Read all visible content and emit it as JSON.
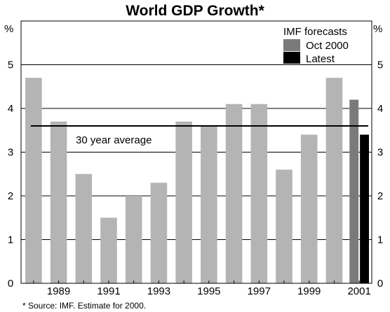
{
  "chart_data": {
    "type": "bar",
    "title": "World GDP Growth*",
    "y_unit_left": "%",
    "y_unit_right": "%",
    "ylim": [
      0,
      6
    ],
    "yticks": [
      0,
      1,
      2,
      3,
      4,
      5
    ],
    "x_tick_labels": [
      "1989",
      "1991",
      "1993",
      "1995",
      "1997",
      "1999",
      "2001"
    ],
    "x_tick_years": [
      1989,
      1991,
      1993,
      1995,
      1997,
      1999,
      2001
    ],
    "x_range": [
      1987.5,
      2001.5
    ],
    "series": [
      {
        "name": "",
        "color": "#b4b4b4",
        "x": [
          1988,
          1989,
          1990,
          1991,
          1992,
          1993,
          1994,
          1995,
          1996,
          1997,
          1998,
          1999,
          2000
        ],
        "values": [
          4.7,
          3.7,
          2.5,
          1.5,
          2.0,
          2.3,
          3.7,
          3.6,
          4.1,
          4.1,
          2.6,
          3.4,
          4.7
        ]
      },
      {
        "name": "Oct 2000",
        "color": "#7a7a7a",
        "x": [
          2001
        ],
        "values": [
          4.2
        ]
      },
      {
        "name": "Latest",
        "color": "#000000",
        "x": [
          2001
        ],
        "values": [
          3.4
        ]
      }
    ],
    "average_line": {
      "label": "30 year average",
      "value": 3.6
    },
    "legend": {
      "title": "IMF forecasts",
      "placement": "top-right",
      "items": [
        "Oct 2000",
        "Latest"
      ]
    },
    "grid": true,
    "footnote": "* Source:  IMF. Estimate for 2000."
  }
}
